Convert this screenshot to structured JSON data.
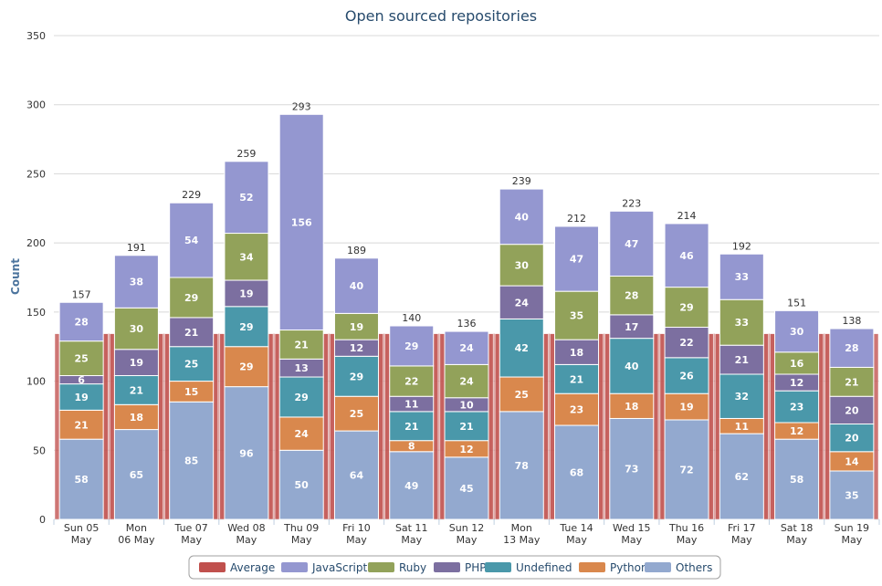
{
  "chart_data": {
    "type": "bar",
    "stacked": true,
    "title": "Open sourced repositories",
    "ylabel": "Count",
    "xlabel": "",
    "ylim": [
      0,
      350
    ],
    "yticks": [
      0,
      50,
      100,
      150,
      200,
      250,
      300,
      350
    ],
    "grid": true,
    "legend_position": "bottom",
    "categories": [
      [
        "Sun 05",
        "May"
      ],
      [
        "Mon",
        "06 May"
      ],
      [
        "Tue 07",
        "May"
      ],
      [
        "Wed 08",
        "May"
      ],
      [
        "Thu 09",
        "May"
      ],
      [
        "Fri 10",
        "May"
      ],
      [
        "Sat 11",
        "May"
      ],
      [
        "Sun 12",
        "May"
      ],
      [
        "Mon",
        "13 May"
      ],
      [
        "Tue 14",
        "May"
      ],
      [
        "Wed 15",
        "May"
      ],
      [
        "Thu 16",
        "May"
      ],
      [
        "Fri 17",
        "May"
      ],
      [
        "Sat 18",
        "May"
      ],
      [
        "Sun 19",
        "May"
      ]
    ],
    "average": {
      "name": "Average",
      "value": 133,
      "color": "#c0504d"
    },
    "series": [
      {
        "name": "Others",
        "color": "#93a9cf",
        "values": [
          58,
          65,
          85,
          96,
          50,
          64,
          49,
          45,
          78,
          68,
          73,
          72,
          62,
          58,
          35
        ]
      },
      {
        "name": "Python",
        "color": "#d9884d",
        "values": [
          21,
          18,
          15,
          29,
          24,
          25,
          8,
          12,
          25,
          23,
          18,
          19,
          11,
          12,
          14
        ]
      },
      {
        "name": "Undefined",
        "color": "#4a98aa",
        "values": [
          19,
          21,
          25,
          29,
          29,
          29,
          21,
          21,
          42,
          21,
          40,
          26,
          32,
          23,
          20
        ]
      },
      {
        "name": "PHP",
        "color": "#7c6fa0",
        "values": [
          6,
          19,
          21,
          19,
          13,
          12,
          11,
          10,
          24,
          18,
          17,
          22,
          21,
          12,
          20
        ]
      },
      {
        "name": "Ruby",
        "color": "#92a25a",
        "values": [
          25,
          30,
          29,
          34,
          21,
          19,
          22,
          24,
          30,
          35,
          28,
          29,
          33,
          16,
          21
        ]
      },
      {
        "name": "JavaScript",
        "color": "#9497d0",
        "values": [
          28,
          38,
          54,
          52,
          156,
          40,
          29,
          24,
          40,
          47,
          47,
          46,
          33,
          30,
          28
        ]
      }
    ],
    "totals": [
      157,
      191,
      229,
      259,
      293,
      189,
      140,
      136,
      239,
      212,
      223,
      214,
      192,
      151,
      138
    ],
    "legend_order": [
      "Average",
      "JavaScript",
      "Ruby",
      "PHP",
      "Undefined",
      "Python",
      "Others"
    ]
  }
}
